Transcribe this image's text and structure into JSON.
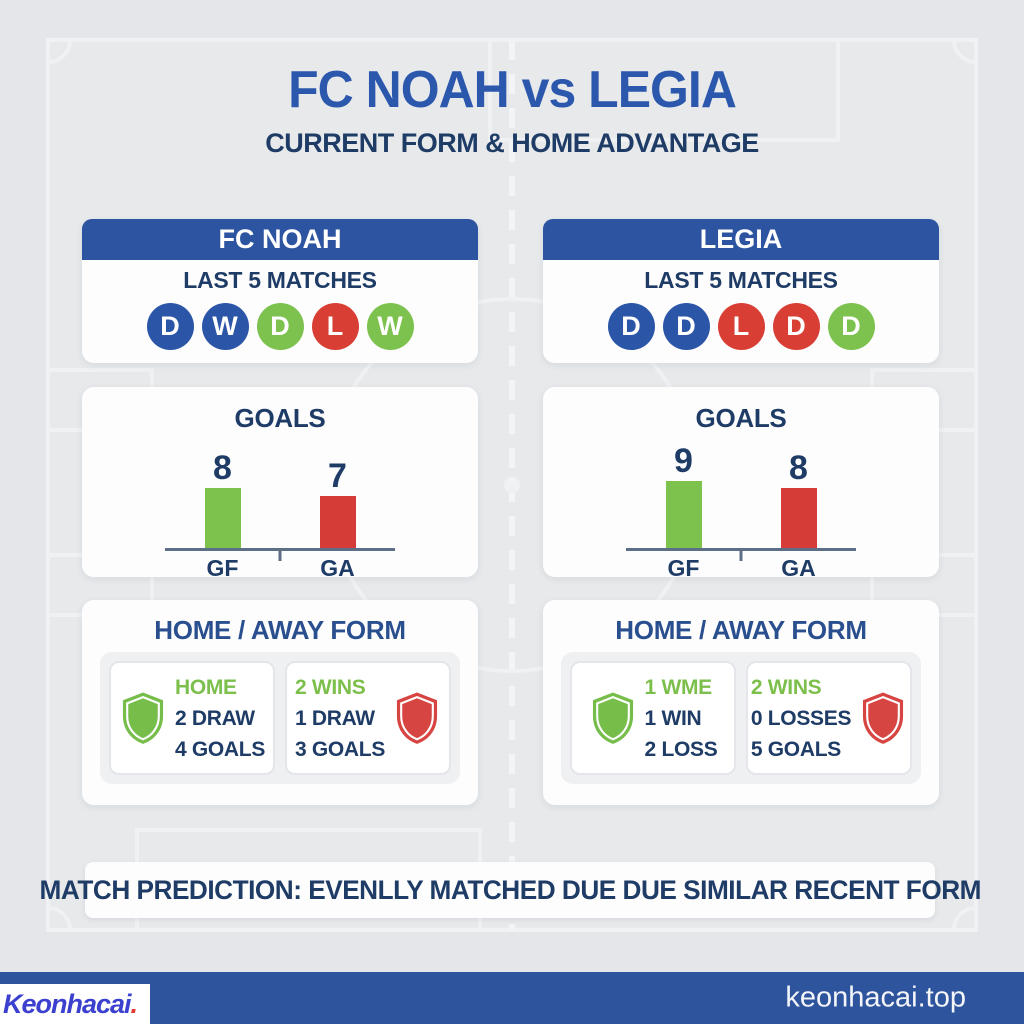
{
  "header": {
    "title": "FC NOAH vs LEGIA",
    "subtitle": "CURRENT FORM & HOME ADVANTAGE"
  },
  "teams": [
    {
      "name": "FC NOAH",
      "last5_label": "LAST 5 MATCHES",
      "results": [
        {
          "letter": "D",
          "color": "blue"
        },
        {
          "letter": "W",
          "color": "blue"
        },
        {
          "letter": "D",
          "color": "green"
        },
        {
          "letter": "L",
          "color": "red"
        },
        {
          "letter": "W",
          "color": "green"
        }
      ],
      "goals": {
        "title": "GOALS",
        "gf": 8,
        "ga": 7,
        "gf_label": "GF",
        "ga_label": "GA"
      },
      "form": {
        "title": "HOME / AWAY FORM",
        "home_card": {
          "lines": [
            {
              "text": "HOME",
              "color": "green"
            },
            {
              "text": "2 DRAW",
              "color": "navy"
            },
            {
              "text": "4 GOALS",
              "color": "navy"
            }
          ]
        },
        "away_card": {
          "lines": [
            {
              "text": "2 WINS",
              "color": "green"
            },
            {
              "text": "1 DRAW",
              "color": "navy"
            },
            {
              "text": "3 GOALS",
              "color": "navy"
            }
          ]
        }
      }
    },
    {
      "name": "LEGIA",
      "last5_label": "LAST 5 MATCHES",
      "results": [
        {
          "letter": "D",
          "color": "blue"
        },
        {
          "letter": "D",
          "color": "blue"
        },
        {
          "letter": "L",
          "color": "red"
        },
        {
          "letter": "D",
          "color": "red"
        },
        {
          "letter": "D",
          "color": "green"
        }
      ],
      "goals": {
        "title": "GOALS",
        "gf": 9,
        "ga": 8,
        "gf_label": "GF",
        "ga_label": "GA"
      },
      "form": {
        "title": "HOME / AWAY FORM",
        "home_card": {
          "lines": [
            {
              "text": "1 WME",
              "color": "green"
            },
            {
              "text": "1 WIN",
              "color": "navy"
            },
            {
              "text": "2 LOSS",
              "color": "navy"
            }
          ]
        },
        "away_card": {
          "lines": [
            {
              "text": "2 WINS",
              "color": "green"
            },
            {
              "text": "0 LOSSES",
              "color": "navy"
            },
            {
              "text": "5 GOALS",
              "color": "navy"
            }
          ]
        }
      }
    }
  ],
  "prediction": "MATCH PREDICTION: EVENLLY MATCHED DUE DUE SIMILAR RECENT FORM",
  "footer": {
    "logo_text": "Keonhacai",
    "logo_dot": ".",
    "site": "keonhacai.top"
  },
  "colors": {
    "background": "#e4e6e9",
    "panel_blue": "#2d54a0",
    "title_blue": "#2b57ad",
    "navy_text": "#1e3c66",
    "win_green": "#7dc24f",
    "loss_red": "#d93e35",
    "footer_blue": "#2d549c",
    "logo_blue": "#3c40cf",
    "logo_dot_red": "#e23b33"
  },
  "chart_data": [
    {
      "type": "bar",
      "title": "GOALS",
      "team": "FC NOAH",
      "categories": [
        "GF",
        "GA"
      ],
      "values": [
        8,
        7
      ],
      "bar_colors": [
        "#7cc24c",
        "#d53b37"
      ],
      "ylim": [
        0,
        10
      ],
      "grid": false,
      "data_labels": true
    },
    {
      "type": "bar",
      "title": "GOALS",
      "team": "LEGIA",
      "categories": [
        "GF",
        "GA"
      ],
      "values": [
        9,
        8
      ],
      "bar_colors": [
        "#7cc24c",
        "#d53b37"
      ],
      "ylim": [
        0,
        10
      ],
      "grid": false,
      "data_labels": true
    }
  ]
}
